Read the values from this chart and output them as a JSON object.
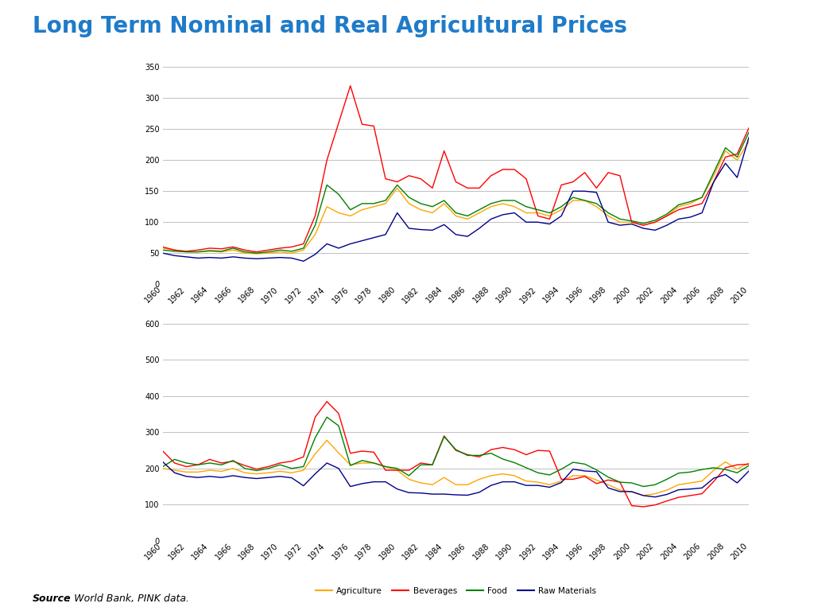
{
  "title": "Long Term Nominal and Real Agricultural Prices",
  "title_color": "#1F7BC8",
  "source_italic": "Source",
  "source_rest": ": World Bank, PINK data.",
  "years": [
    1960,
    1961,
    1962,
    1963,
    1964,
    1965,
    1966,
    1967,
    1968,
    1969,
    1970,
    1971,
    1972,
    1973,
    1974,
    1975,
    1976,
    1977,
    1978,
    1979,
    1980,
    1981,
    1982,
    1983,
    1984,
    1985,
    1986,
    1987,
    1988,
    1989,
    1990,
    1991,
    1992,
    1993,
    1994,
    1995,
    1996,
    1997,
    1998,
    1999,
    2000,
    2001,
    2002,
    2003,
    2004,
    2005,
    2006,
    2007,
    2008,
    2009,
    2010
  ],
  "nominal": {
    "Agriculture": [
      58,
      55,
      52,
      52,
      53,
      52,
      55,
      50,
      49,
      50,
      52,
      50,
      55,
      80,
      125,
      115,
      110,
      120,
      125,
      130,
      155,
      130,
      120,
      115,
      130,
      110,
      105,
      115,
      125,
      130,
      125,
      115,
      115,
      110,
      120,
      135,
      135,
      125,
      110,
      100,
      100,
      95,
      100,
      110,
      125,
      130,
      140,
      175,
      215,
      200,
      230
    ],
    "Beverages": [
      60,
      55,
      53,
      55,
      58,
      57,
      60,
      55,
      52,
      55,
      58,
      60,
      65,
      110,
      200,
      260,
      320,
      258,
      255,
      170,
      165,
      175,
      170,
      155,
      215,
      165,
      155,
      155,
      175,
      185,
      185,
      170,
      110,
      105,
      160,
      165,
      180,
      155,
      180,
      175,
      100,
      95,
      100,
      110,
      120,
      125,
      130,
      165,
      205,
      210,
      252
    ],
    "Food": [
      55,
      53,
      52,
      52,
      54,
      53,
      58,
      52,
      50,
      52,
      55,
      53,
      58,
      95,
      160,
      145,
      120,
      130,
      130,
      135,
      160,
      140,
      130,
      125,
      135,
      115,
      110,
      120,
      130,
      135,
      135,
      125,
      120,
      115,
      125,
      140,
      135,
      130,
      115,
      105,
      102,
      98,
      103,
      113,
      128,
      133,
      140,
      180,
      220,
      205,
      245
    ],
    "Raw Materials": [
      50,
      46,
      44,
      42,
      43,
      42,
      44,
      42,
      41,
      42,
      43,
      42,
      37,
      48,
      65,
      58,
      65,
      70,
      75,
      80,
      115,
      90,
      88,
      87,
      96,
      80,
      77,
      90,
      105,
      112,
      115,
      100,
      100,
      97,
      110,
      150,
      150,
      148,
      100,
      95,
      97,
      90,
      87,
      95,
      105,
      108,
      115,
      165,
      195,
      172,
      237
    ]
  },
  "real": {
    "Agriculture": [
      200,
      195,
      190,
      190,
      195,
      192,
      200,
      188,
      185,
      188,
      192,
      188,
      195,
      240,
      278,
      243,
      210,
      215,
      215,
      205,
      195,
      170,
      160,
      155,
      175,
      155,
      155,
      170,
      180,
      185,
      180,
      165,
      162,
      155,
      165,
      180,
      180,
      168,
      155,
      140,
      135,
      125,
      130,
      140,
      155,
      160,
      165,
      195,
      218,
      198,
      215
    ],
    "Beverages": [
      248,
      215,
      205,
      210,
      225,
      215,
      220,
      208,
      198,
      205,
      215,
      220,
      232,
      342,
      385,
      352,
      242,
      248,
      245,
      195,
      195,
      195,
      215,
      210,
      290,
      250,
      238,
      232,
      252,
      258,
      252,
      238,
      250,
      248,
      170,
      170,
      178,
      158,
      168,
      162,
      97,
      94,
      99,
      110,
      120,
      125,
      130,
      164,
      202,
      210,
      212
    ],
    "Food": [
      205,
      225,
      215,
      210,
      215,
      210,
      222,
      200,
      194,
      200,
      210,
      200,
      205,
      285,
      342,
      318,
      208,
      222,
      215,
      205,
      200,
      180,
      210,
      210,
      288,
      252,
      236,
      236,
      242,
      226,
      216,
      202,
      188,
      182,
      198,
      217,
      212,
      196,
      176,
      162,
      160,
      150,
      155,
      170,
      187,
      190,
      197,
      202,
      197,
      188,
      208
    ],
    "Raw Materials": [
      218,
      188,
      178,
      175,
      178,
      175,
      180,
      175,
      172,
      175,
      178,
      174,
      152,
      185,
      215,
      200,
      150,
      158,
      163,
      163,
      143,
      133,
      132,
      129,
      129,
      127,
      126,
      134,
      153,
      163,
      163,
      153,
      153,
      148,
      161,
      198,
      193,
      191,
      146,
      136,
      136,
      125,
      121,
      128,
      141,
      143,
      146,
      173,
      183,
      160,
      193
    ]
  },
  "colors": {
    "Agriculture": "#FFA500",
    "Beverages": "#FF0000",
    "Food": "#008000",
    "Raw Materials": "#00008B"
  },
  "nominal_ylim": [
    0,
    350
  ],
  "nominal_yticks": [
    0,
    50,
    100,
    150,
    200,
    250,
    300,
    350
  ],
  "real_ylim": [
    0,
    600
  ],
  "real_yticks": [
    0,
    100,
    200,
    300,
    400,
    500,
    600
  ],
  "series_names": [
    "Agriculture",
    "Beverages",
    "Food",
    "Raw Materials"
  ]
}
